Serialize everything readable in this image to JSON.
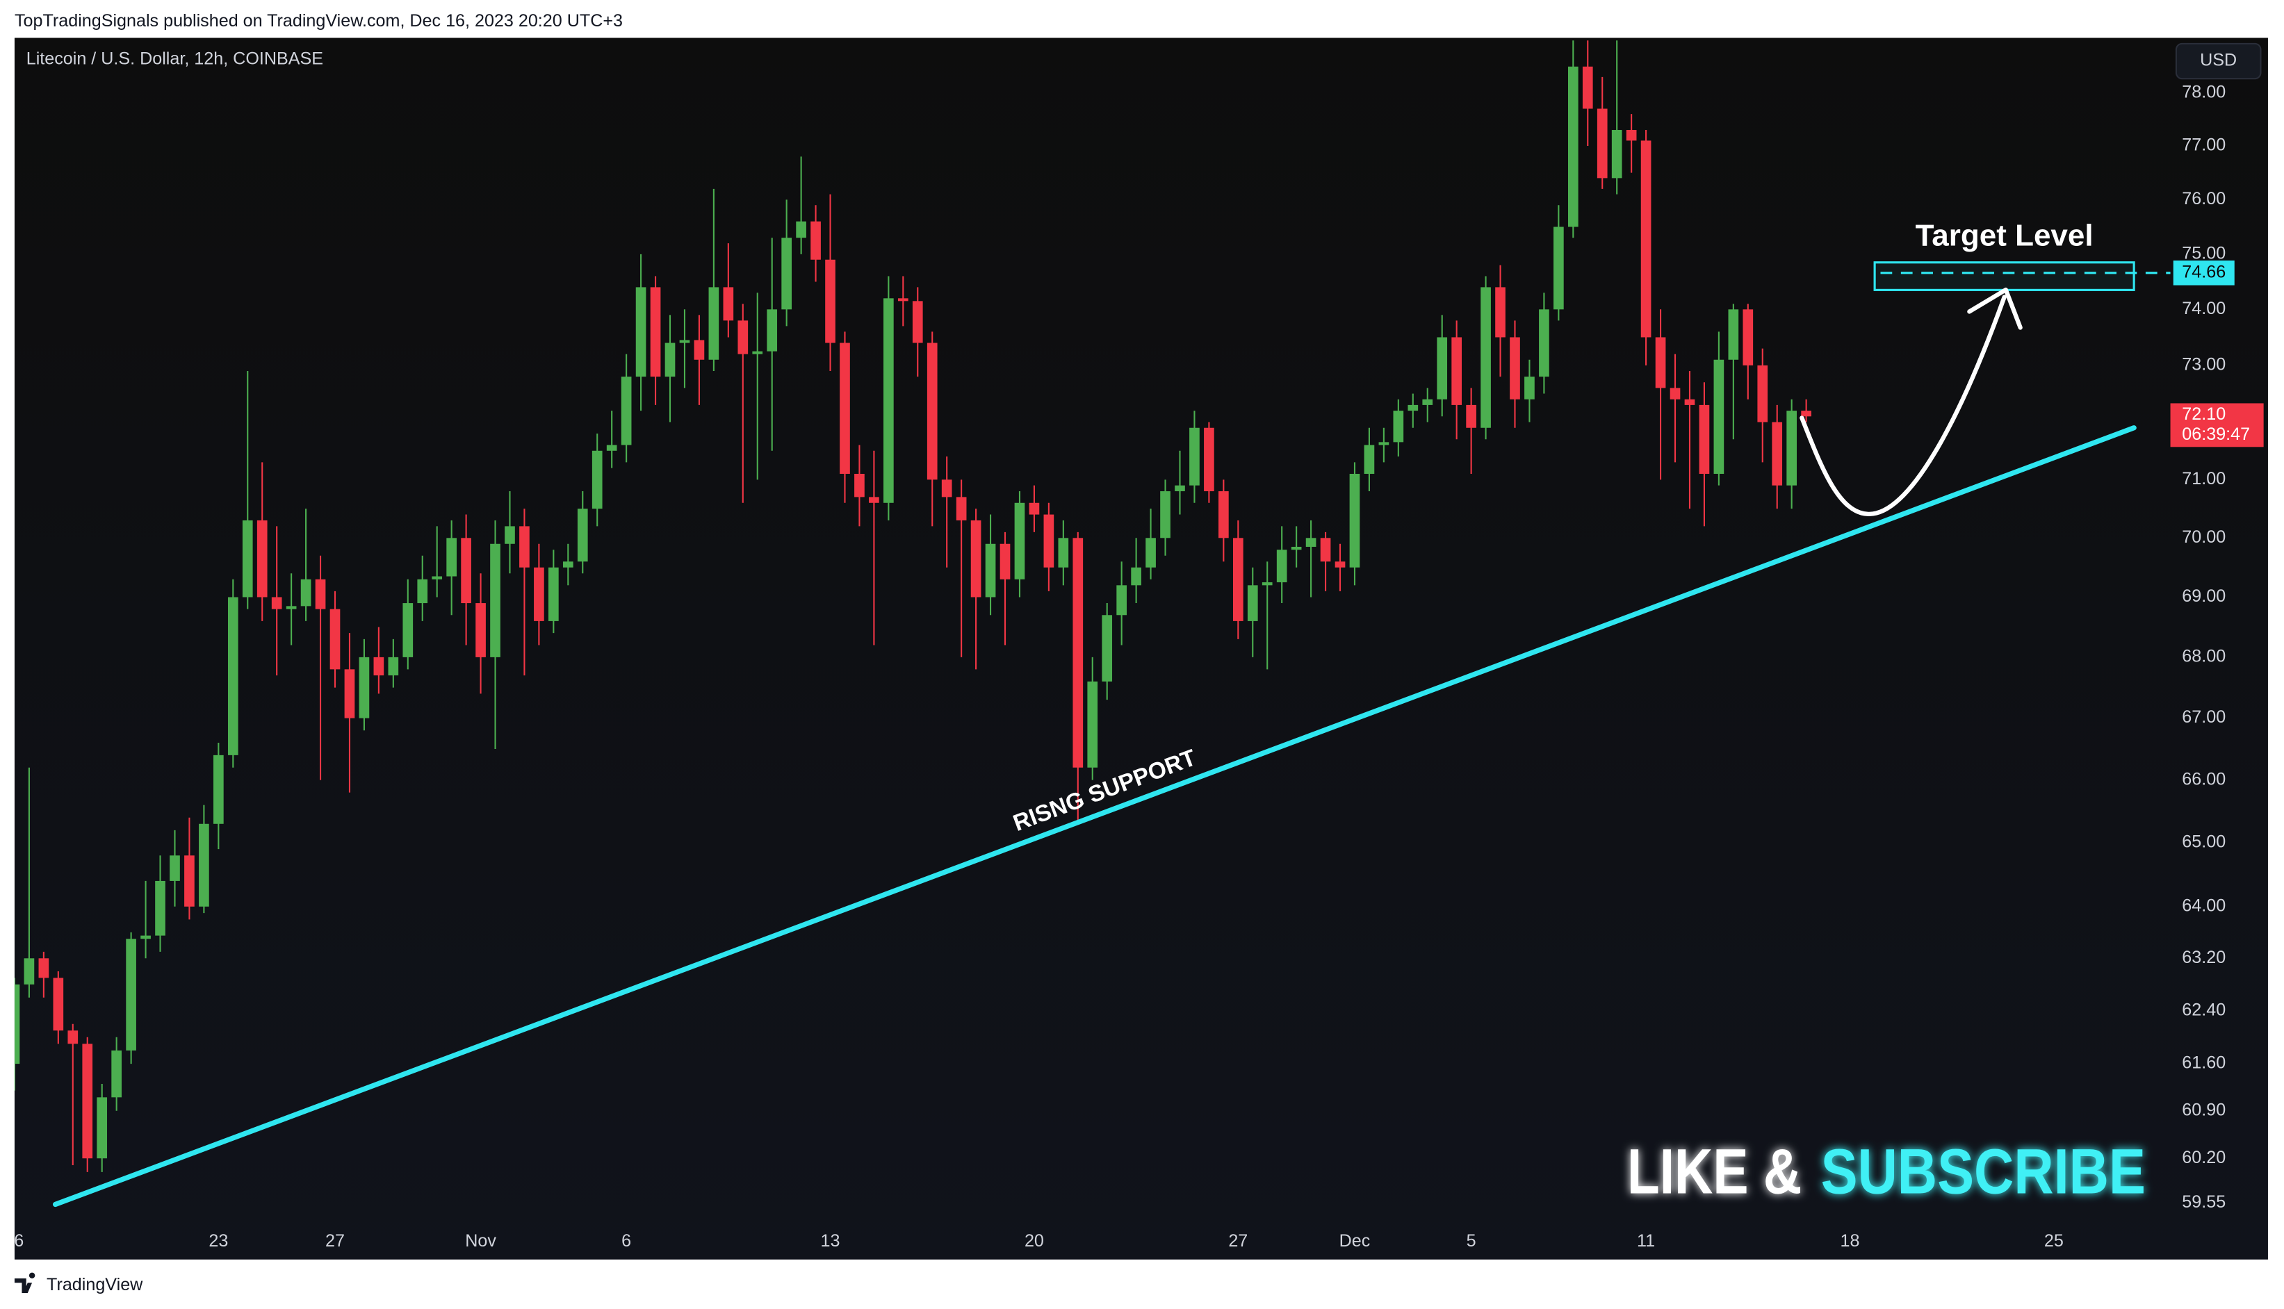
{
  "chart_data": {
    "type": "candlestick",
    "header": "TopTradingSignals published on TradingView.com, Dec 16, 2023 20:20 UTC+3",
    "title": "Litecoin / U.S. Dollar, 12h, COINBASE",
    "currency": "USD",
    "footer": "TradingView",
    "colors": {
      "up": "#4caf50",
      "down": "#f23645",
      "accent": "#2fe6f0"
    },
    "log_scale": true,
    "grid": false,
    "xlim": [
      0,
      147.5
    ],
    "ylim": [
      59.26,
      79.05
    ],
    "xticks": [
      {
        "value": 0,
        "label": "6"
      },
      {
        "value": 14,
        "label": "23"
      },
      {
        "value": 22,
        "label": "27"
      },
      {
        "value": 32,
        "label": "Nov"
      },
      {
        "value": 42,
        "label": "6"
      },
      {
        "value": 56,
        "label": "13"
      },
      {
        "value": 70,
        "label": "20"
      },
      {
        "value": 84,
        "label": "27"
      },
      {
        "value": 92,
        "label": "Dec"
      },
      {
        "value": 100,
        "label": "5"
      },
      {
        "value": 112,
        "label": "11"
      },
      {
        "value": 126,
        "label": "18"
      },
      {
        "value": 140,
        "label": "25"
      }
    ],
    "yticks": [
      {
        "value": 78,
        "label": "78.00"
      },
      {
        "value": 77,
        "label": "77.00"
      },
      {
        "value": 76,
        "label": "76.00"
      },
      {
        "value": 75,
        "label": "75.00"
      },
      {
        "value": 74,
        "label": "74.00"
      },
      {
        "value": 73,
        "label": "73.00"
      },
      {
        "value": 71,
        "label": "71.00"
      },
      {
        "value": 70,
        "label": "70.00"
      },
      {
        "value": 69,
        "label": "69.00"
      },
      {
        "value": 68,
        "label": "68.00"
      },
      {
        "value": 67,
        "label": "67.00"
      },
      {
        "value": 66,
        "label": "66.00"
      },
      {
        "value": 65,
        "label": "65.00"
      },
      {
        "value": 64,
        "label": "64.00"
      },
      {
        "value": 63.2,
        "label": "63.20"
      },
      {
        "value": 62.4,
        "label": "62.40"
      },
      {
        "value": 61.6,
        "label": "61.60"
      },
      {
        "value": 60.9,
        "label": "60.90"
      },
      {
        "value": 60.2,
        "label": "60.20"
      },
      59.55
    ],
    "ohlc": [
      [
        61.6,
        62.9,
        61.2,
        62.8
      ],
      [
        62.8,
        66.2,
        62.6,
        63.2
      ],
      [
        63.2,
        63.3,
        62.6,
        62.9
      ],
      [
        62.9,
        63.0,
        61.9,
        62.1
      ],
      [
        62.1,
        62.2,
        60.1,
        61.9
      ],
      [
        61.9,
        62.0,
        60.0,
        60.2
      ],
      [
        60.2,
        61.3,
        60.0,
        61.1
      ],
      [
        61.1,
        62.0,
        60.9,
        61.8
      ],
      [
        61.8,
        63.6,
        61.6,
        63.5
      ],
      [
        63.5,
        64.4,
        63.2,
        63.55
      ],
      [
        63.55,
        64.8,
        63.3,
        64.4
      ],
      [
        64.4,
        65.2,
        64.0,
        64.8
      ],
      [
        64.8,
        65.4,
        63.8,
        64.0
      ],
      [
        64.0,
        65.6,
        63.9,
        65.3
      ],
      [
        65.3,
        66.6,
        64.9,
        66.4
      ],
      [
        66.4,
        69.3,
        66.2,
        69.0
      ],
      [
        69.0,
        72.9,
        68.8,
        70.3
      ],
      [
        70.3,
        71.3,
        68.6,
        69.0
      ],
      [
        69.0,
        70.2,
        67.7,
        68.8
      ],
      [
        68.8,
        69.4,
        68.2,
        68.85
      ],
      [
        68.85,
        70.5,
        68.6,
        69.3
      ],
      [
        69.3,
        69.7,
        66.0,
        68.8
      ],
      [
        68.8,
        69.1,
        67.5,
        67.8
      ],
      [
        67.8,
        68.4,
        65.8,
        67.0
      ],
      [
        67.0,
        68.3,
        66.8,
        68.0
      ],
      [
        68.0,
        68.5,
        67.4,
        67.7
      ],
      [
        67.7,
        68.3,
        67.5,
        68.0
      ],
      [
        68.0,
        69.3,
        67.8,
        68.9
      ],
      [
        68.9,
        69.7,
        68.6,
        69.3
      ],
      [
        69.3,
        70.2,
        69.0,
        69.35
      ],
      [
        69.35,
        70.3,
        68.7,
        70.0
      ],
      [
        70.0,
        70.4,
        68.2,
        68.9
      ],
      [
        68.9,
        69.4,
        67.4,
        68.0
      ],
      [
        68.0,
        70.3,
        66.5,
        69.9
      ],
      [
        69.9,
        70.8,
        69.4,
        70.2
      ],
      [
        70.2,
        70.5,
        67.7,
        69.5
      ],
      [
        69.5,
        69.9,
        68.2,
        68.6
      ],
      [
        68.6,
        69.8,
        68.4,
        69.5
      ],
      [
        69.5,
        69.9,
        69.2,
        69.6
      ],
      [
        69.6,
        70.8,
        69.4,
        70.5
      ],
      [
        70.5,
        71.8,
        70.2,
        71.5
      ],
      [
        71.5,
        72.2,
        71.2,
        71.6
      ],
      [
        71.6,
        73.2,
        71.3,
        72.8
      ],
      [
        72.8,
        75.0,
        72.2,
        74.4
      ],
      [
        74.4,
        74.6,
        72.3,
        72.8
      ],
      [
        72.8,
        73.9,
        72.0,
        73.4
      ],
      [
        73.4,
        74.0,
        72.6,
        73.45
      ],
      [
        73.45,
        73.9,
        72.3,
        73.1
      ],
      [
        73.1,
        76.2,
        72.9,
        74.4
      ],
      [
        74.4,
        75.2,
        73.5,
        73.8
      ],
      [
        73.8,
        74.1,
        70.6,
        73.2
      ],
      [
        73.2,
        74.3,
        71.0,
        73.25
      ],
      [
        73.25,
        75.3,
        71.5,
        74.0
      ],
      [
        74.0,
        76.0,
        73.7,
        75.3
      ],
      [
        75.3,
        76.8,
        75.0,
        75.6
      ],
      [
        75.6,
        75.9,
        74.5,
        74.9
      ],
      [
        74.9,
        76.1,
        72.9,
        73.4
      ],
      [
        73.4,
        73.6,
        70.6,
        71.1
      ],
      [
        71.1,
        71.6,
        70.2,
        70.7
      ],
      [
        70.7,
        71.5,
        68.2,
        70.6
      ],
      [
        70.6,
        74.6,
        70.3,
        74.2
      ],
      [
        74.2,
        74.6,
        73.7,
        74.15
      ],
      [
        74.15,
        74.4,
        72.8,
        73.4
      ],
      [
        73.4,
        73.6,
        70.2,
        71.0
      ],
      [
        71.0,
        71.4,
        69.5,
        70.7
      ],
      [
        70.7,
        71.0,
        68.0,
        70.3
      ],
      [
        70.3,
        70.5,
        67.8,
        69.0
      ],
      [
        69.0,
        70.4,
        68.7,
        69.9
      ],
      [
        69.9,
        70.1,
        68.2,
        69.3
      ],
      [
        69.3,
        70.8,
        69.0,
        70.6
      ],
      [
        70.6,
        70.9,
        70.1,
        70.4
      ],
      [
        70.4,
        70.6,
        69.1,
        69.5
      ],
      [
        69.5,
        70.3,
        69.2,
        70.0
      ],
      [
        70.0,
        70.1,
        65.3,
        66.2
      ],
      [
        66.2,
        68.0,
        66.0,
        67.6
      ],
      [
        67.6,
        68.9,
        67.3,
        68.7
      ],
      [
        68.7,
        69.6,
        68.2,
        69.2
      ],
      [
        69.2,
        70.0,
        68.9,
        69.5
      ],
      [
        69.5,
        70.5,
        69.3,
        70.0
      ],
      [
        70.0,
        71.0,
        69.7,
        70.8
      ],
      [
        70.8,
        71.5,
        70.4,
        70.9
      ],
      [
        70.9,
        72.2,
        70.6,
        71.9
      ],
      [
        71.9,
        72.0,
        70.6,
        70.8
      ],
      [
        70.8,
        71.0,
        69.6,
        70.0
      ],
      [
        70.0,
        70.3,
        68.3,
        68.6
      ],
      [
        68.6,
        69.5,
        68.0,
        69.2
      ],
      [
        69.2,
        69.6,
        67.8,
        69.25
      ],
      [
        69.25,
        70.2,
        68.9,
        69.8
      ],
      [
        69.8,
        70.2,
        69.5,
        69.85
      ],
      [
        69.85,
        70.3,
        69.0,
        70.0
      ],
      [
        70.0,
        70.1,
        69.1,
        69.6
      ],
      [
        69.6,
        69.9,
        69.1,
        69.5
      ],
      [
        69.5,
        71.3,
        69.2,
        71.1
      ],
      [
        71.1,
        71.9,
        70.8,
        71.6
      ],
      [
        71.6,
        71.9,
        71.3,
        71.65
      ],
      [
        71.65,
        72.4,
        71.4,
        72.2
      ],
      [
        72.2,
        72.5,
        71.9,
        72.3
      ],
      [
        72.3,
        72.6,
        72.0,
        72.4
      ],
      [
        72.4,
        73.9,
        72.1,
        73.5
      ],
      [
        73.5,
        73.8,
        71.7,
        72.3
      ],
      [
        72.3,
        72.6,
        71.1,
        71.9
      ],
      [
        71.9,
        74.6,
        71.7,
        74.4
      ],
      [
        74.4,
        74.8,
        72.8,
        73.5
      ],
      [
        73.5,
        73.8,
        71.9,
        72.4
      ],
      [
        72.4,
        73.1,
        72.0,
        72.8
      ],
      [
        72.8,
        74.3,
        72.5,
        74.0
      ],
      [
        74.0,
        75.9,
        73.8,
        75.5
      ],
      [
        75.5,
        79.0,
        75.3,
        78.5
      ],
      [
        78.5,
        79.0,
        77.0,
        77.7
      ],
      [
        77.7,
        78.3,
        76.2,
        76.4
      ],
      [
        76.4,
        79.0,
        76.1,
        77.3
      ],
      [
        77.3,
        77.6,
        76.5,
        77.1
      ],
      [
        77.1,
        77.3,
        73.0,
        73.5
      ],
      [
        73.5,
        74.0,
        71.0,
        72.6
      ],
      [
        72.6,
        73.2,
        71.3,
        72.4
      ],
      [
        72.4,
        72.9,
        70.5,
        72.3
      ],
      [
        72.3,
        72.7,
        70.2,
        71.1
      ],
      [
        71.1,
        73.6,
        70.9,
        73.1
      ],
      [
        73.1,
        74.1,
        71.7,
        74.0
      ],
      [
        74.0,
        74.1,
        72.4,
        73.0
      ],
      [
        73.0,
        73.3,
        71.3,
        72.0
      ],
      [
        72.0,
        72.3,
        70.5,
        70.9
      ],
      [
        70.9,
        72.4,
        70.5,
        72.2
      ],
      [
        72.2,
        72.4,
        72.0,
        72.1
      ]
    ],
    "last_price": {
      "value": 72.1,
      "label": "72.10"
    },
    "countdown": "06:39:47",
    "support_line": {
      "label": "RISNG SUPPORT",
      "x": [
        2.8,
        145.5
      ],
      "y": [
        59.53,
        71.9
      ]
    },
    "target": {
      "title": "Target Level",
      "value": 74.66,
      "box_x": [
        127.7,
        145.5
      ],
      "box_y": [
        74.35,
        74.85
      ]
    },
    "cta": {
      "first": "LIKE &",
      "second": "SUBSCRIBE"
    }
  }
}
